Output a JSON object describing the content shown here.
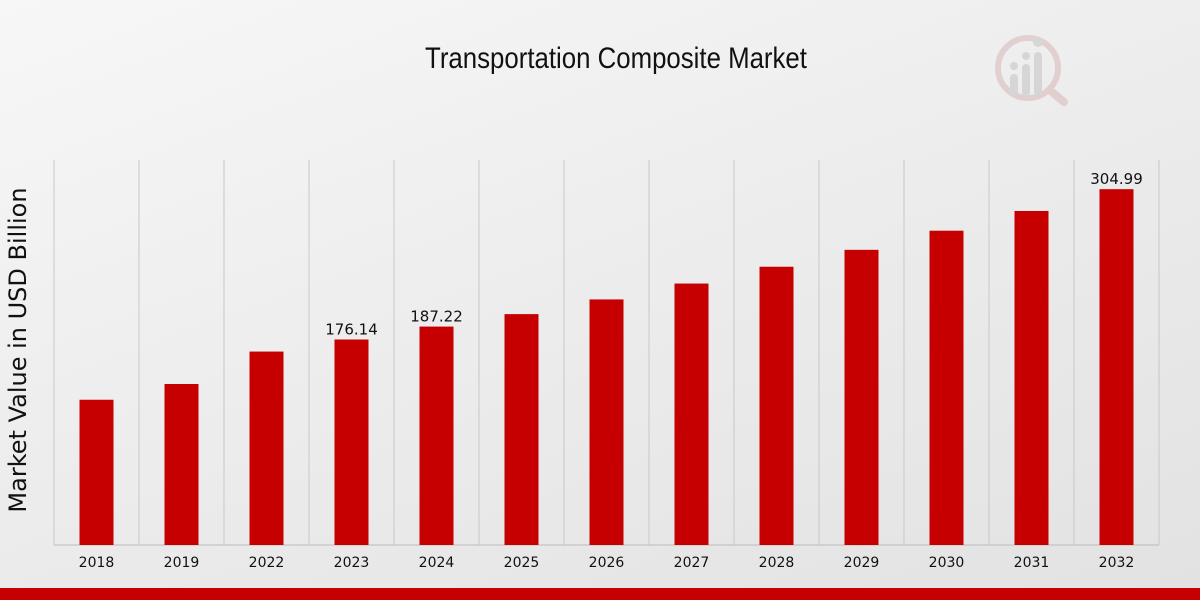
{
  "chart_data": {
    "type": "bar",
    "title": "Transportation Composite Market",
    "xlabel": "",
    "ylabel": "Market Value in USD Billion",
    "categories": [
      "2018",
      "2019",
      "2022",
      "2023",
      "2024",
      "2025",
      "2026",
      "2027",
      "2028",
      "2029",
      "2030",
      "2031",
      "2032"
    ],
    "values": [
      124.5,
      138.0,
      165.8,
      176.14,
      187.22,
      197.9,
      210.5,
      224.1,
      238.5,
      253.0,
      269.4,
      286.3,
      304.99
    ],
    "data_labels": {
      "3": "176.14",
      "4": "187.22",
      "12": "304.99"
    },
    "ylim": [
      0,
      330
    ],
    "grid": "vertical",
    "legend": "none",
    "colors": {
      "bar": "#c60000",
      "grid": "#c8c8c8",
      "axis": "#bbbbbb"
    }
  }
}
